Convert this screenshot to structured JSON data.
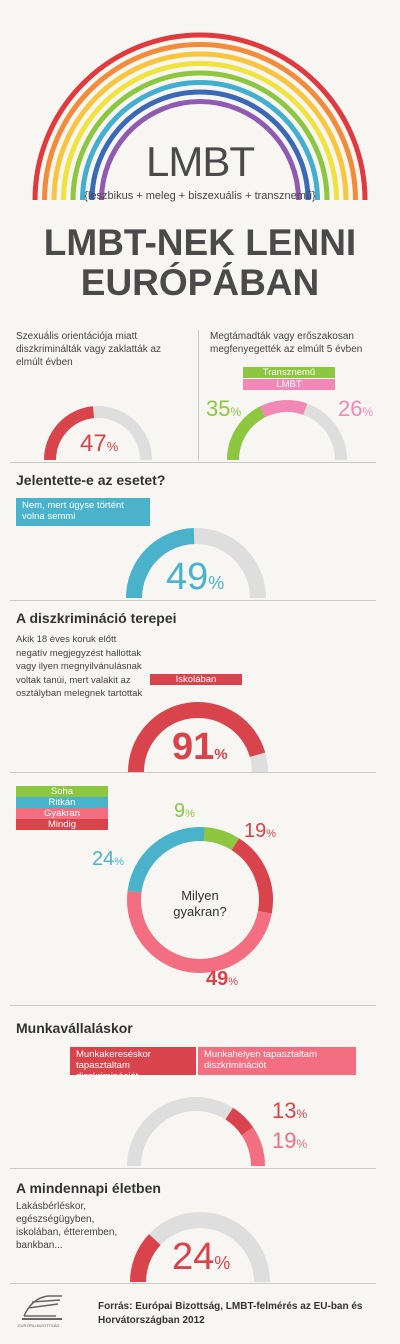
{
  "header": {
    "logo": "LMBT",
    "subtitle": "{leszbikus + meleg + biszexuális + transznemű}",
    "title_line1": "LMBT-NEK LENNI",
    "title_line2": "EURÓPÁBAN"
  },
  "rainbow_colors": [
    "#e0393e",
    "#f28c3a",
    "#f8c53d",
    "#f1e33f",
    "#8dc63f",
    "#42aed0",
    "#3a69b5",
    "#8f5ab0"
  ],
  "colors": {
    "red": "#d9434b",
    "pink": "#f26e80",
    "green": "#8dc63f",
    "blue": "#4ab3cb",
    "lightpink": "#f288b6",
    "gray": "#dedede"
  },
  "section1": {
    "left_text": "Szexuális orientációja miatt diszkriminálták vagy zaklatták az elmúlt évben",
    "left_value": "47",
    "right_text": "Megtámadták vagy erőszakosan megfenyegették az elmúlt 5 évben",
    "legend_trans": "Transznemű",
    "legend_lmbt": "LMBT",
    "right_value_trans": "35",
    "right_value_lmbt": "26",
    "pct_sign": "%"
  },
  "section2": {
    "heading": "Jelentette-e az esetet?",
    "tag": "Nem, mert úgyse történt volna semmi",
    "value": "49"
  },
  "section3": {
    "heading": "A diszkrimináció terepei",
    "text": "Akik 18 éves koruk előtt negatív megjegyzést hallottak vagy ilyen megnyilvánulásnak voltak tanúi, mert valakit az osztályban melegnek tartottak",
    "tag": "Iskolában",
    "value": "91"
  },
  "section4": {
    "legend": [
      "Soha",
      "Ritkán",
      "Gyakran",
      "Mindig"
    ],
    "center_text_1": "Milyen",
    "center_text_2": "gyakran?",
    "values": {
      "soha": "9",
      "ritkan": "24",
      "gyakran": "49",
      "mindig": "19"
    }
  },
  "section5": {
    "heading": "Munkavállaláskor",
    "tag1": "Munkakereséskor tapasztaltam diszkriminációt",
    "tag2": "Munkahelyen tapasztaltam diszkriminációt",
    "value1": "13",
    "value2": "19"
  },
  "section6": {
    "heading": "A mindennapi életben",
    "text": "Lakásbérléskor, egészségügyben, iskolában, étteremben, bankban...",
    "value": "24"
  },
  "footer": {
    "source": "Forrás: Európai Bizottság, LMBT-felmérés az EU-ban és Horvátországban 2012",
    "logo_text": "EURÓPAI BIZOTTSÁG"
  }
}
